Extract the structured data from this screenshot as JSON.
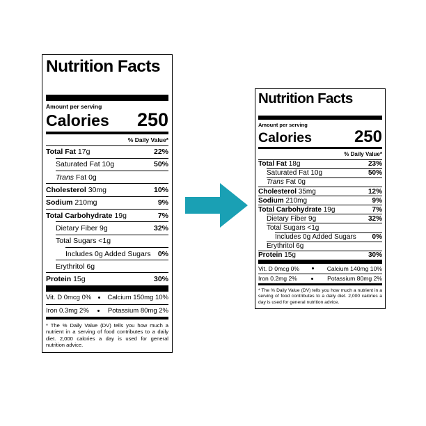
{
  "labels": [
    {
      "title": "Nutrition Facts",
      "amount_per_serving": "Amount per serving",
      "calories_label": "Calories",
      "calories": "250",
      "daily_value_header": "% Daily Value*",
      "rows": [
        {
          "name": "Total Fat",
          "amount": "17g",
          "dv": "22%",
          "bold": true,
          "indent": 0
        },
        {
          "name": "Saturated Fat",
          "amount": "10g",
          "dv": "50%",
          "bold": false,
          "indent": 1
        },
        {
          "name_italic": "Trans",
          "name": "Fat",
          "amount": "0g",
          "bold": false,
          "indent": 1
        },
        {
          "name": "Cholesterol",
          "amount": "30mg",
          "dv": "10%",
          "bold": true,
          "indent": 0
        },
        {
          "name": "Sodium",
          "amount": "210mg",
          "dv": "9%",
          "bold": true,
          "indent": 0
        },
        {
          "name": "Total Carbohydrate",
          "amount": "19g",
          "dv": "7%",
          "bold": true,
          "indent": 0
        },
        {
          "name": "Dietary Fiber",
          "amount": "9g",
          "dv": "32%",
          "bold": false,
          "indent": 1
        },
        {
          "name": "Total Sugars",
          "amount": "<1g",
          "bold": false,
          "indent": 1
        },
        {
          "name": "Includes 0g Added Sugars",
          "dv": "0%",
          "bold": false,
          "indent": 2
        },
        {
          "name": "Erythritol",
          "amount": "6g",
          "bold": false,
          "indent": 1
        },
        {
          "name": "Protein",
          "amount": "15g",
          "dv": "30%",
          "bold": true,
          "indent": 0
        }
      ],
      "micronutrients": [
        [
          "Vit. D 0mcg 0%",
          "Calcium 150mg 10%"
        ],
        [
          "Iron 0.3mg 2%",
          "Potassium 80mg 2%"
        ]
      ],
      "footnote": "* The % Daily Value (DV) tells you how much a nutrient in a serving of food contributes to a daily diet. 2,000 calories a day is used for general nutrition advice."
    },
    {
      "title": "Nutrition Facts",
      "amount_per_serving": "Amount per serving",
      "calories_label": "Calories",
      "calories": "250",
      "daily_value_header": "% Daily Value*",
      "rows": [
        {
          "name": "Total Fat",
          "amount": "18g",
          "dv": "23%",
          "bold": true,
          "indent": 0
        },
        {
          "name": "Saturated Fat",
          "amount": "10g",
          "dv": "50%",
          "bold": false,
          "indent": 1
        },
        {
          "name_italic": "Trans",
          "name": "Fat",
          "amount": "0g",
          "bold": false,
          "indent": 1
        },
        {
          "name": "Cholesterol",
          "amount": "35mg",
          "dv": "12%",
          "bold": true,
          "indent": 0
        },
        {
          "name": "Sodium",
          "amount": "210mg",
          "dv": "9%",
          "bold": true,
          "indent": 0
        },
        {
          "name": "Total Carbohydrate",
          "amount": "19g",
          "dv": "7%",
          "bold": true,
          "indent": 0
        },
        {
          "name": "Dietary Fiber",
          "amount": "9g",
          "dv": "32%",
          "bold": false,
          "indent": 1
        },
        {
          "name": "Total Sugars",
          "amount": "<1g",
          "bold": false,
          "indent": 1
        },
        {
          "name": "Includes 0g Added Sugars",
          "dv": "0%",
          "bold": false,
          "indent": 2
        },
        {
          "name": "Erythritol",
          "amount": "6g",
          "bold": false,
          "indent": 1
        },
        {
          "name": "Protein",
          "amount": "15g",
          "dv": "30%",
          "bold": true,
          "indent": 0
        }
      ],
      "micronutrients": [
        [
          "Vit. D 0mcg 0%",
          "Calcium 140mg 10%"
        ],
        [
          "Iron 0.2mg 2%",
          "Potassium 80mg 2%"
        ]
      ],
      "footnote": "* The % Daily Value (DV) tells you how much a nutrient in a serving of food contributes to a daily diet. 2,000 calories a day is used for general nutrition advice."
    }
  ]
}
